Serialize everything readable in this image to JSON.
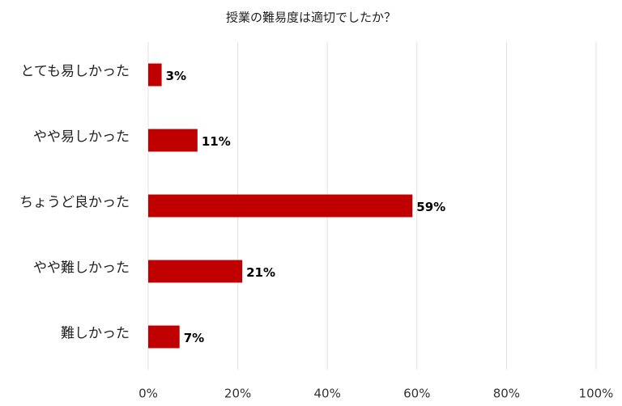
{
  "chart_data": {
    "type": "hbar",
    "title": "授業の難易度は適切でしたか？",
    "categories": [
      "とても易しかった",
      "やや易しかった",
      "ちょうど良かった",
      "やや難しかった",
      "難しかった"
    ],
    "values": [
      3,
      11,
      59,
      21,
      7
    ],
    "value_labels": [
      "3%",
      "11%",
      "59%",
      "21%",
      "7%"
    ],
    "color": "#c00000",
    "xlim": [
      0,
      100
    ],
    "xticks": [
      {
        "value": 0,
        "label": "0%"
      },
      {
        "value": 20,
        "label": "20%"
      },
      {
        "value": 40,
        "label": "40%"
      },
      {
        "value": 60,
        "label": "60%"
      },
      {
        "value": 80,
        "label": "80%"
      },
      {
        "value": 100,
        "label": "100%"
      }
    ],
    "grid": true
  }
}
